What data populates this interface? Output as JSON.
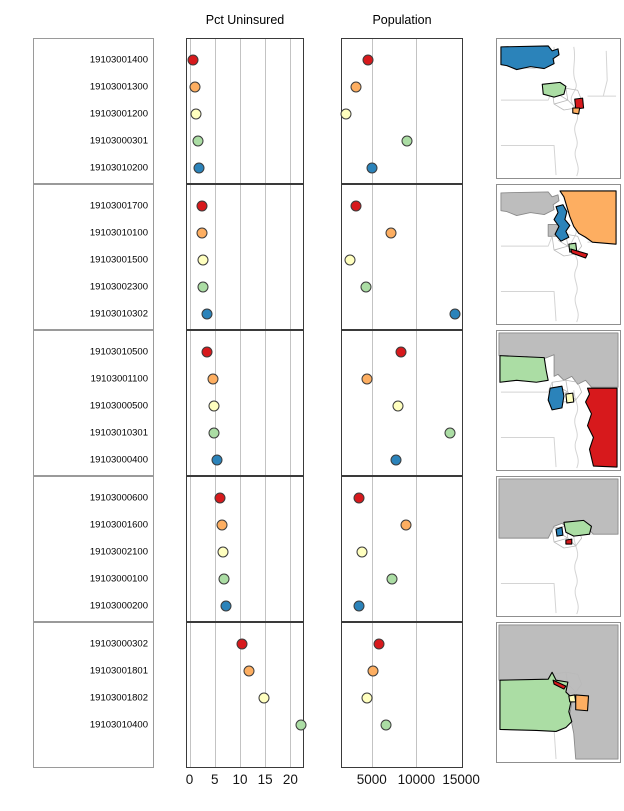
{
  "palette": {
    "red": "#d7191c",
    "orange": "#fdae61",
    "yellow": "#ffffbf",
    "green": "#abdda4",
    "blue": "#2b83ba",
    "map_gray": "#bdbdbd"
  },
  "chart_data": {
    "type": "scatter",
    "layout": {
      "facet_groups": 5,
      "grid": true,
      "legend": "none",
      "row_label_column": "census tract GEOID",
      "map_column": "county tract map with group tracts highlighted, previous groups in gray"
    },
    "panels": [
      {
        "key": "pct_uninsured",
        "title": "Pct Uninsured",
        "xticks": [
          0,
          5,
          10,
          15,
          20
        ],
        "xtick_labels": [
          "0",
          "5",
          "10",
          "15",
          "20"
        ],
        "xlim": [
          -0.7,
          22.7
        ]
      },
      {
        "key": "population",
        "title": "Population",
        "xticks": [
          5000,
          10000,
          15000
        ],
        "xtick_labels": [
          "5000",
          "10000",
          "15000"
        ],
        "xlim": [
          1560,
          15210
        ]
      }
    ],
    "groups": [
      {
        "tracts": [
          {
            "id": "19103001400",
            "color": "red",
            "pct_uninsured": 0.6,
            "population": 4550
          },
          {
            "id": "19103001300",
            "color": "orange",
            "pct_uninsured": 1.0,
            "population": 3100
          },
          {
            "id": "19103001200",
            "color": "yellow",
            "pct_uninsured": 1.2,
            "population": 2050
          },
          {
            "id": "19103000301",
            "color": "green",
            "pct_uninsured": 1.5,
            "population": 9000
          },
          {
            "id": "19103010200",
            "color": "blue",
            "pct_uninsured": 1.8,
            "population": 5000
          }
        ]
      },
      {
        "tracts": [
          {
            "id": "19103001700",
            "color": "red",
            "pct_uninsured": 2.3,
            "population": 3100
          },
          {
            "id": "19103010100",
            "color": "orange",
            "pct_uninsured": 2.4,
            "population": 7100
          },
          {
            "id": "19103001500",
            "color": "yellow",
            "pct_uninsured": 2.5,
            "population": 2500
          },
          {
            "id": "19103002300",
            "color": "green",
            "pct_uninsured": 2.6,
            "population": 4300
          },
          {
            "id": "19103010302",
            "color": "blue",
            "pct_uninsured": 3.3,
            "population": 14400
          }
        ]
      },
      {
        "tracts": [
          {
            "id": "19103010500",
            "color": "red",
            "pct_uninsured": 3.4,
            "population": 8300
          },
          {
            "id": "19103001100",
            "color": "orange",
            "pct_uninsured": 4.6,
            "population": 4450
          },
          {
            "id": "19103000500",
            "color": "yellow",
            "pct_uninsured": 4.8,
            "population": 7900
          },
          {
            "id": "19103010301",
            "color": "green",
            "pct_uninsured": 4.8,
            "population": 13800
          },
          {
            "id": "19103000400",
            "color": "blue",
            "pct_uninsured": 5.4,
            "population": 7650
          }
        ]
      },
      {
        "tracts": [
          {
            "id": "19103000600",
            "color": "red",
            "pct_uninsured": 6.0,
            "population": 3500
          },
          {
            "id": "19103001600",
            "color": "orange",
            "pct_uninsured": 6.3,
            "population": 8800
          },
          {
            "id": "19103002100",
            "color": "yellow",
            "pct_uninsured": 6.5,
            "population": 3850
          },
          {
            "id": "19103000100",
            "color": "green",
            "pct_uninsured": 6.8,
            "population": 7250
          },
          {
            "id": "19103000200",
            "color": "blue",
            "pct_uninsured": 7.1,
            "population": 3500
          }
        ]
      },
      {
        "tracts": [
          {
            "id": "19103000302",
            "color": "red",
            "pct_uninsured": 10.3,
            "population": 5800
          },
          {
            "id": "19103001801",
            "color": "orange",
            "pct_uninsured": 11.9,
            "population": 5100
          },
          {
            "id": "19103001802",
            "color": "yellow",
            "pct_uninsured": 14.9,
            "population": 4400
          },
          {
            "id": "19103010400",
            "color": "green",
            "pct_uninsured": 22.3,
            "population": 6550
          }
        ]
      }
    ]
  },
  "maps": [
    {
      "name": "group-1-map",
      "colors_shown": [
        "blue",
        "green",
        "red",
        "orange"
      ],
      "previous_groups_gray": false
    },
    {
      "name": "group-2-map",
      "colors_shown": [
        "orange",
        "blue",
        "green",
        "red"
      ],
      "previous_groups_gray": true
    },
    {
      "name": "group-3-map",
      "colors_shown": [
        "green",
        "blue",
        "yellow",
        "red"
      ],
      "previous_groups_gray": true
    },
    {
      "name": "group-4-map",
      "colors_shown": [
        "green",
        "blue",
        "red"
      ],
      "previous_groups_gray": true
    },
    {
      "name": "group-5-map",
      "colors_shown": [
        "green",
        "red",
        "yellow",
        "orange"
      ],
      "previous_groups_gray": true
    }
  ]
}
